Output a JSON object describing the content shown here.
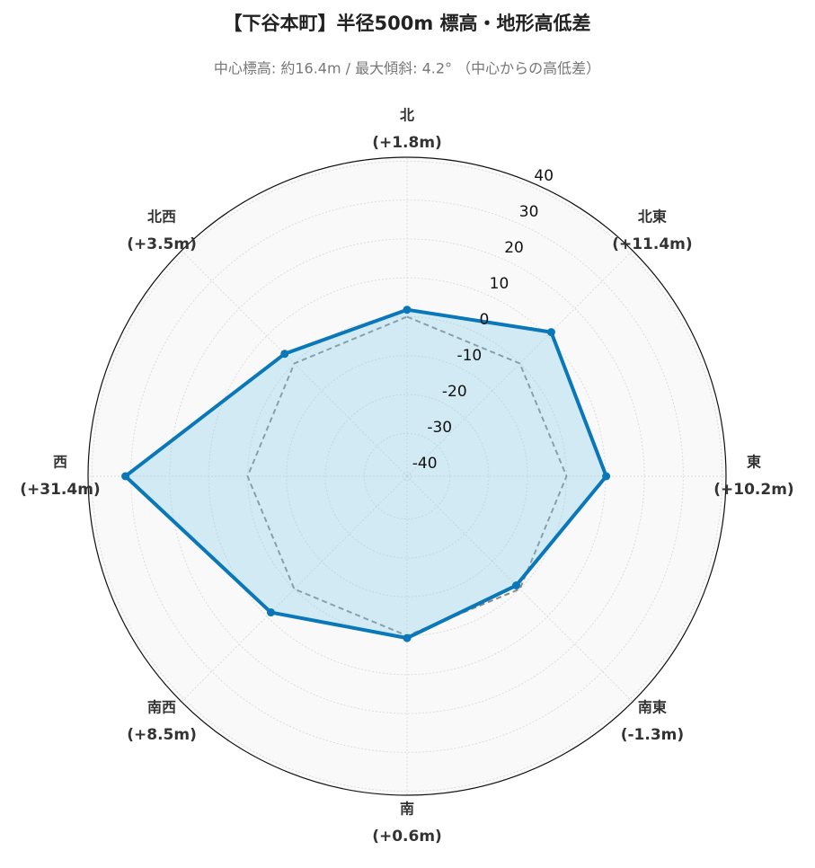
{
  "chart_data": {
    "type": "radar",
    "title": "【下谷本町】半径500m 標高・地形高低差",
    "subtitle": "中心標高: 約16.4m / 最大傾斜: 4.2° （中心からの高低差）",
    "categories": [
      "北",
      "北東",
      "東",
      "南東",
      "南",
      "南西",
      "西",
      "北西"
    ],
    "values": [
      1.8,
      11.4,
      10.2,
      -1.3,
      0.6,
      8.5,
      31.4,
      3.5
    ],
    "value_labels": [
      "(+1.8m)",
      "(+11.4m)",
      "(+10.2m)",
      "(-1.3m)",
      "(+0.6m)",
      "(+8.5m)",
      "(+31.4m)",
      "(+3.5m)"
    ],
    "color": "#0a77b8",
    "reference_level": 0,
    "ylim": [
      -41,
      41
    ],
    "yticks": [
      -40,
      -30,
      -20,
      -10,
      0,
      10,
      20,
      30,
      40
    ],
    "grid": true
  }
}
